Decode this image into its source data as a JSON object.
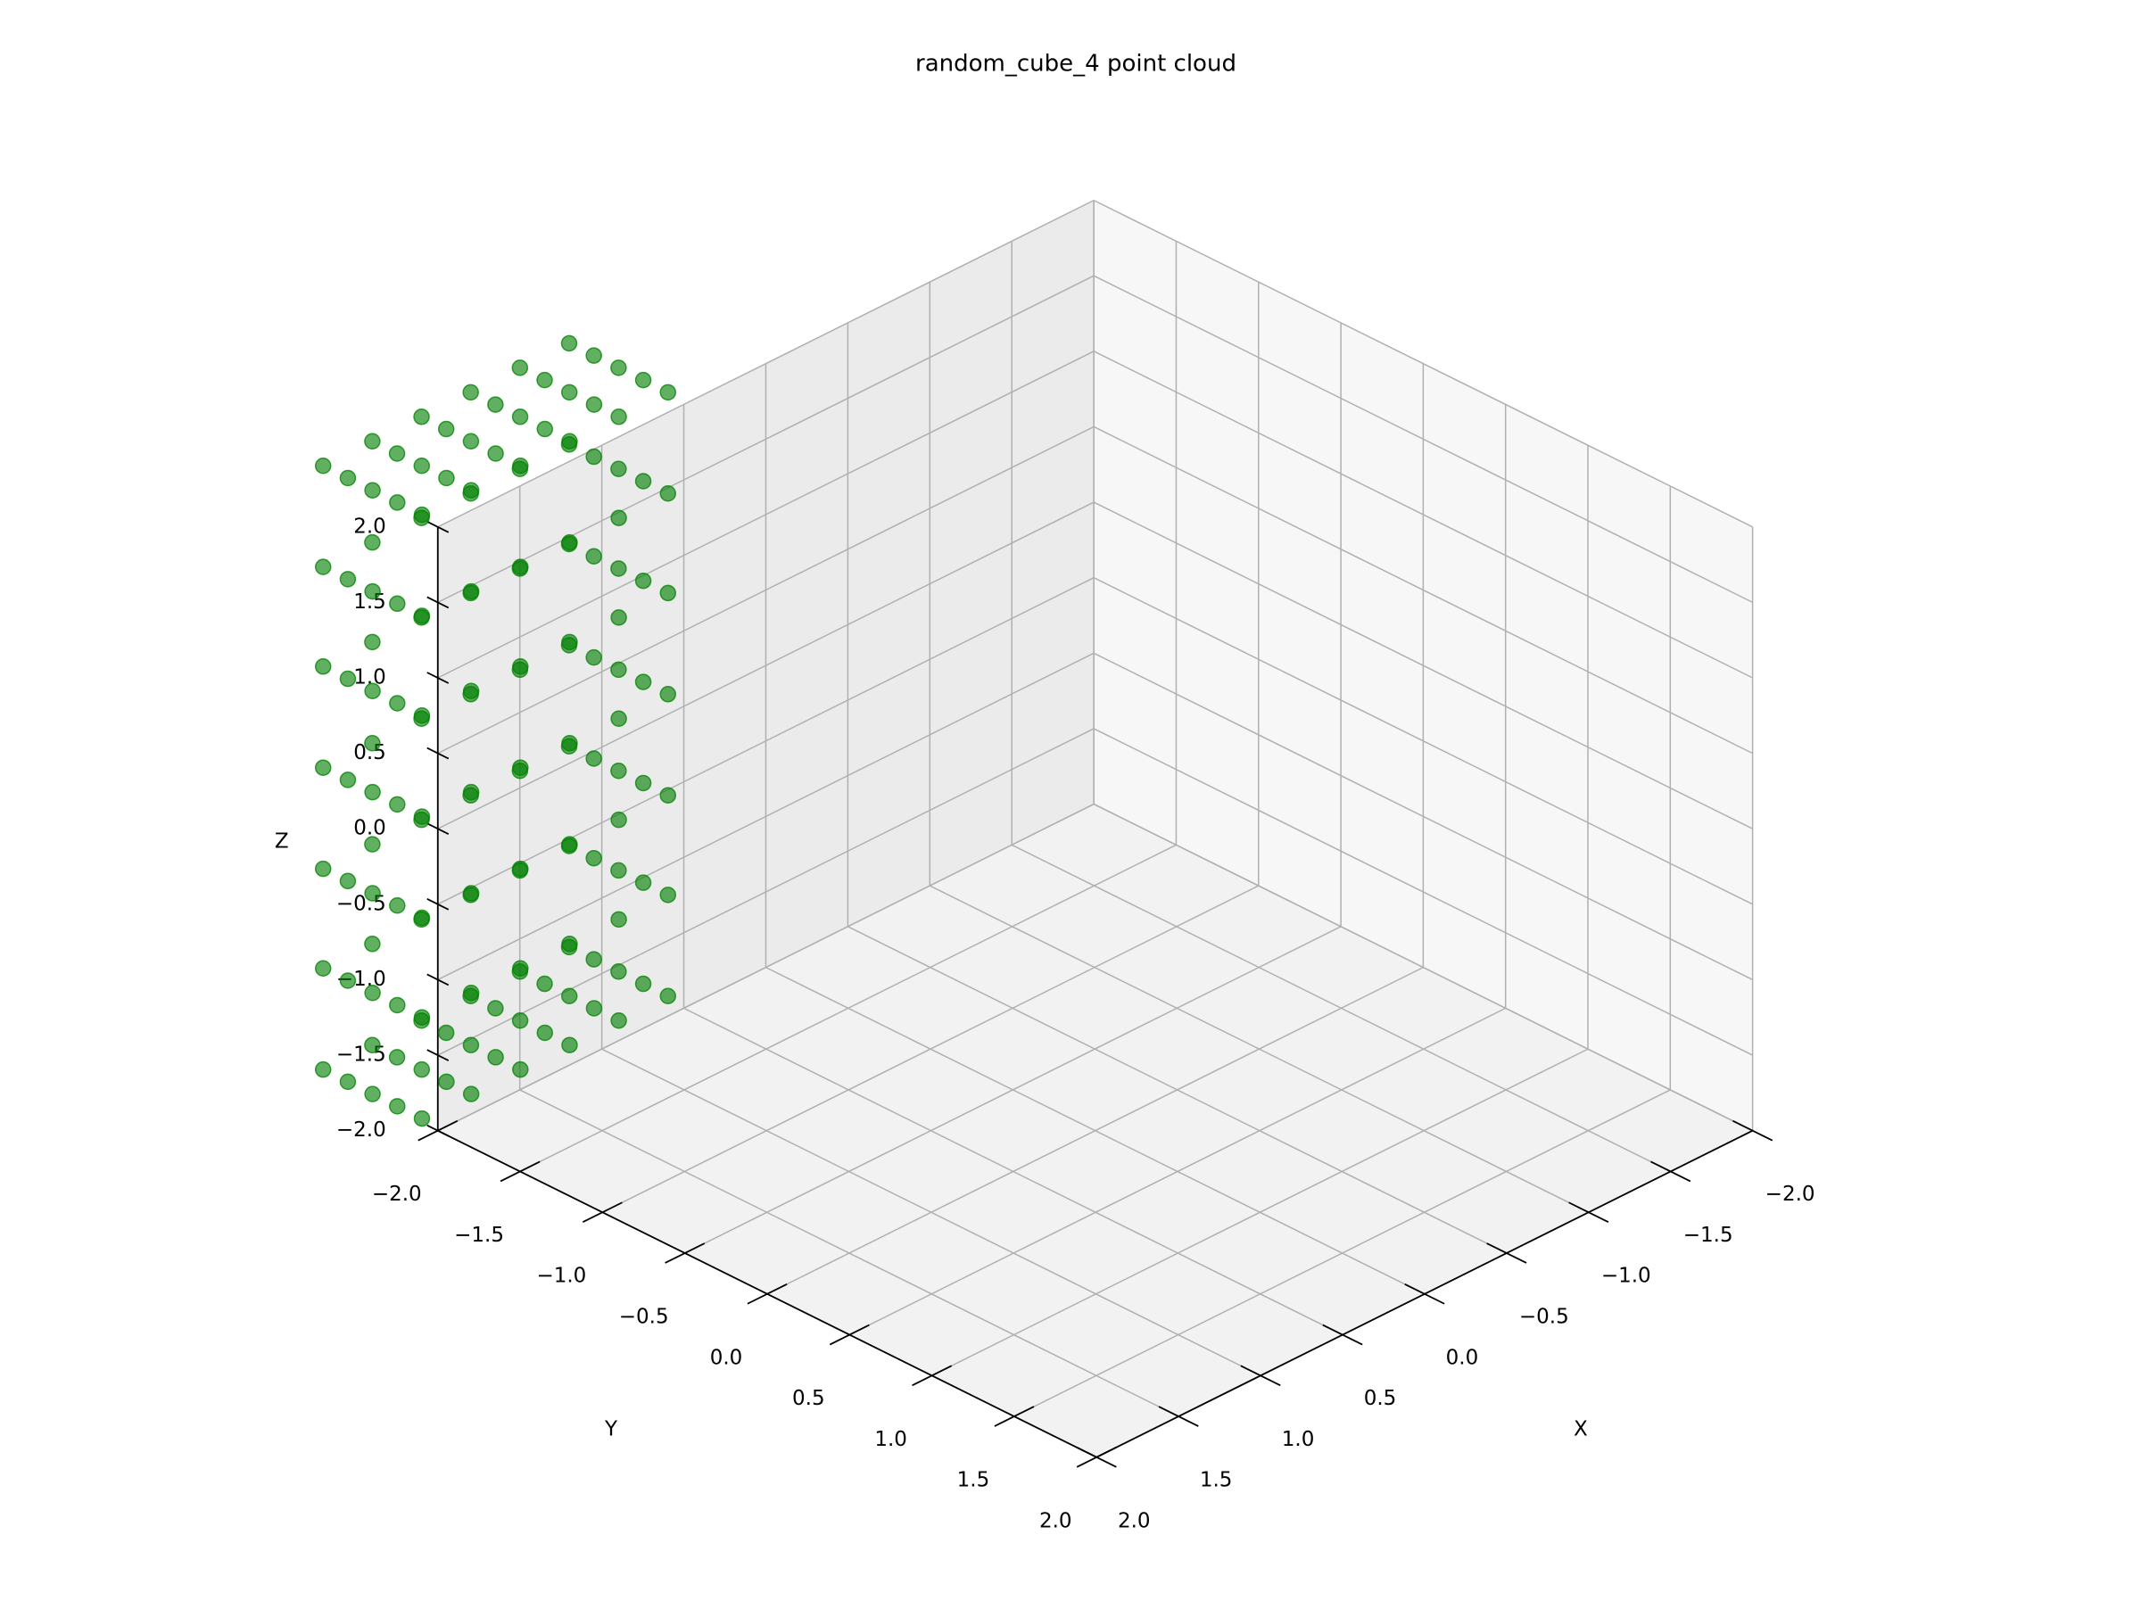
{
  "chart_data": {
    "type": "scatter3d",
    "title": "random_cube_4 point cloud",
    "x_label": "X",
    "y_label": "Y",
    "z_label": "Z",
    "color": "green",
    "xlim": [
      -2,
      2
    ],
    "ylim": [
      -2,
      2
    ],
    "zlim": [
      -2,
      2
    ],
    "xticks": [
      {
        "value": -2,
        "label": "−2.0"
      },
      {
        "value": -1.5,
        "label": "−1.5"
      },
      {
        "value": -1,
        "label": "−1.0"
      },
      {
        "value": -0.5,
        "label": "−0.5"
      },
      {
        "value": 0,
        "label": "0.0"
      },
      0.5,
      {
        "value": 1,
        "label": "1.0"
      },
      1.5,
      {
        "value": 2,
        "label": "2.0"
      }
    ],
    "yticks": [
      {
        "value": -2,
        "label": "−2.0"
      },
      {
        "value": -1.5,
        "label": "−1.5"
      },
      {
        "value": -1,
        "label": "−1.0"
      },
      {
        "value": -0.5,
        "label": "−0.5"
      },
      {
        "value": 0,
        "label": "0.0"
      },
      0.5,
      {
        "value": 1,
        "label": "1.0"
      },
      1.5,
      {
        "value": 2,
        "label": "2.0"
      }
    ],
    "zticks": [
      {
        "value": -2,
        "label": "−2.0"
      },
      {
        "value": -1.5,
        "label": "−1.5"
      },
      {
        "value": -1,
        "label": "−1.0"
      },
      {
        "value": -0.5,
        "label": "−0.5"
      },
      {
        "value": 0,
        "label": "0.0"
      },
      0.5,
      {
        "value": 1,
        "label": "1.0"
      },
      1.5,
      {
        "value": 2,
        "label": "2.0"
      }
    ],
    "grid": true,
    "x": [
      1.4,
      1.4,
      1.4,
      1.4,
      1.4,
      1.7,
      1.7,
      1.7,
      1.7,
      1.7,
      2,
      2,
      2,
      2,
      2,
      2.3,
      2.3,
      2.3,
      2.3,
      2.3,
      2.6,
      2.6,
      2.6,
      2.6,
      2.6,
      2.9,
      2.9,
      2.9,
      2.9,
      2.9,
      1.4,
      1.4,
      1.4,
      1.4,
      1.4,
      1.7,
      1.7,
      2,
      2,
      2.3,
      2.3,
      2.6,
      2.6,
      2.9,
      2.9,
      2.9,
      2.9,
      2.9,
      1.4,
      1.4,
      1.4,
      1.4,
      1.4,
      1.7,
      1.7,
      2,
      2,
      2.3,
      2.3,
      2.6,
      2.6,
      2.9,
      2.9,
      2.9,
      2.9,
      2.9,
      1.4,
      1.4,
      1.4,
      1.4,
      1.4,
      1.7,
      1.7,
      2,
      2,
      2.3,
      2.3,
      2.6,
      2.6,
      2.9,
      2.9,
      2.9,
      2.9,
      2.9,
      1.4,
      1.4,
      1.4,
      1.4,
      1.4,
      1.7,
      1.7,
      2,
      2,
      2.3,
      2.3,
      2.6,
      2.6,
      2.9,
      2.9,
      2.9,
      2.9,
      2.9,
      1.4,
      1.4,
      1.4,
      1.4,
      1.4,
      1.7,
      1.7,
      2,
      2,
      2.3,
      2.3,
      2.6,
      2.6,
      2.9,
      2.9,
      2.9,
      2.9,
      2.9,
      1.4,
      1.4,
      1.4,
      1.4,
      1.4,
      1.7,
      1.7,
      1.7,
      1.7,
      1.7,
      2,
      2,
      2,
      2,
      2,
      2.3,
      2.3,
      2.3,
      2.3,
      2.3,
      2.6,
      2.6,
      2.6,
      2.6,
      2.6,
      2.9,
      2.9,
      2.9,
      2.9,
      2.9
    ],
    "y": [
      -1.8,
      -1.65,
      -1.5,
      -1.35,
      -1.2,
      -1.8,
      -1.65,
      -1.5,
      -1.35,
      -1.2,
      -1.8,
      -1.65,
      -1.5,
      -1.35,
      -1.2,
      -1.8,
      -1.65,
      -1.5,
      -1.35,
      -1.2,
      -1.8,
      -1.65,
      -1.5,
      -1.35,
      -1.2,
      -1.8,
      -1.65,
      -1.5,
      -1.35,
      -1.2,
      -1.8,
      -1.65,
      -1.5,
      -1.35,
      -1.2,
      -1.8,
      -1.2,
      -1.8,
      -1.2,
      -1.8,
      -1.2,
      -1.8,
      -1.2,
      -1.8,
      -1.65,
      -1.5,
      -1.35,
      -1.2,
      -1.8,
      -1.65,
      -1.5,
      -1.35,
      -1.2,
      -1.8,
      -1.2,
      -1.8,
      -1.2,
      -1.8,
      -1.2,
      -1.8,
      -1.2,
      -1.8,
      -1.65,
      -1.5,
      -1.35,
      -1.2,
      -1.8,
      -1.65,
      -1.5,
      -1.35,
      -1.2,
      -1.8,
      -1.2,
      -1.8,
      -1.2,
      -1.8,
      -1.2,
      -1.8,
      -1.2,
      -1.8,
      -1.65,
      -1.5,
      -1.35,
      -1.2,
      -1.8,
      -1.65,
      -1.5,
      -1.35,
      -1.2,
      -1.8,
      -1.2,
      -1.8,
      -1.2,
      -1.8,
      -1.2,
      -1.8,
      -1.2,
      -1.8,
      -1.65,
      -1.5,
      -1.35,
      -1.2,
      -1.8,
      -1.65,
      -1.5,
      -1.35,
      -1.2,
      -1.8,
      -1.2,
      -1.8,
      -1.2,
      -1.8,
      -1.2,
      -1.8,
      -1.2,
      -1.8,
      -1.65,
      -1.5,
      -1.35,
      -1.2,
      -1.8,
      -1.65,
      -1.5,
      -1.35,
      -1.2,
      -1.8,
      -1.65,
      -1.5,
      -1.35,
      -1.2,
      -1.8,
      -1.65,
      -1.5,
      -1.35,
      -1.2,
      -1.8,
      -1.65,
      -1.5,
      -1.35,
      -1.2,
      -1.8,
      -1.65,
      -1.5,
      -1.35,
      -1.2,
      -1.8,
      -1.65,
      -1.5,
      -1.35,
      -1.2
    ],
    "z": [
      -1,
      -1,
      -1,
      -1,
      -1,
      -1,
      -1,
      -1,
      -1,
      -1,
      -1,
      -1,
      -1,
      -1,
      -1,
      -1,
      -1,
      -1,
      -1,
      -1,
      -1,
      -1,
      -1,
      -1,
      -1,
      -1,
      -1,
      -1,
      -1,
      -1,
      -0.33,
      -0.33,
      -0.33,
      -0.33,
      -0.33,
      -0.33,
      -0.33,
      -0.33,
      -0.33,
      -0.33,
      -0.33,
      -0.33,
      -0.33,
      -0.33,
      -0.33,
      -0.33,
      -0.33,
      -0.33,
      0.33,
      0.33,
      0.33,
      0.33,
      0.33,
      0.33,
      0.33,
      0.33,
      0.33,
      0.33,
      0.33,
      0.33,
      0.33,
      0.33,
      0.33,
      0.33,
      0.33,
      0.33,
      1,
      1,
      1,
      1,
      1,
      1,
      1,
      1,
      1,
      1,
      1,
      1,
      1,
      1,
      1,
      1,
      1,
      1,
      1.67,
      1.67,
      1.67,
      1.67,
      1.67,
      1.67,
      1.67,
      1.67,
      1.67,
      1.67,
      1.67,
      1.67,
      1.67,
      1.67,
      1.67,
      1.67,
      1.67,
      1.67,
      2.33,
      2.33,
      2.33,
      2.33,
      2.33,
      2.33,
      2.33,
      2.33,
      2.33,
      2.33,
      2.33,
      2.33,
      2.33,
      2.33,
      2.33,
      2.33,
      2.33,
      2.33,
      3,
      3,
      3,
      3,
      3,
      3,
      3,
      3,
      3,
      3,
      3,
      3,
      3,
      3,
      3,
      3,
      3,
      3,
      3,
      3,
      3,
      3,
      3,
      3,
      3,
      3,
      3,
      3,
      3,
      3
    ]
  }
}
